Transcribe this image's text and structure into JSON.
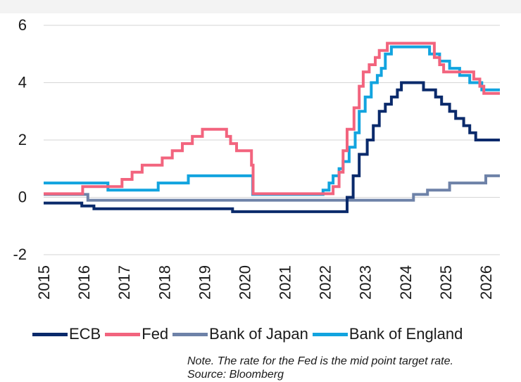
{
  "chart_data": {
    "type": "line",
    "title": "",
    "xlabel": "",
    "ylabel": "",
    "xlim": [
      2015.0,
      2026.35
    ],
    "ylim": [
      -2,
      6
    ],
    "y_ticks": [
      6,
      4,
      2,
      0,
      -2
    ],
    "y_tick_labels": [
      "6",
      "4",
      "2",
      "0",
      "-2"
    ],
    "x_ticks": [
      2015,
      2016,
      2017,
      2018,
      2019,
      2020,
      2021,
      2022,
      2023,
      2024,
      2025,
      2026
    ],
    "x_tick_labels": [
      "2015",
      "2016",
      "2017",
      "2018",
      "2019",
      "2020",
      "2021",
      "2022",
      "2023",
      "2024",
      "2025",
      "2026"
    ],
    "grid": "horizontal",
    "legend_position": "bottom",
    "series": [
      {
        "name": "ECB",
        "color": "#0a2a6b",
        "points": [
          [
            2015.0,
            -0.2
          ],
          [
            2015.95,
            -0.3
          ],
          [
            2016.25,
            -0.4
          ],
          [
            2019.7,
            -0.5
          ],
          [
            2022.55,
            0.0
          ],
          [
            2022.7,
            0.75
          ],
          [
            2022.85,
            1.5
          ],
          [
            2023.05,
            2.0
          ],
          [
            2023.2,
            2.5
          ],
          [
            2023.35,
            3.0
          ],
          [
            2023.5,
            3.25
          ],
          [
            2023.65,
            3.5
          ],
          [
            2023.8,
            3.75
          ],
          [
            2023.9,
            4.0
          ],
          [
            2024.45,
            3.75
          ],
          [
            2024.75,
            3.5
          ],
          [
            2024.9,
            3.25
          ],
          [
            2025.1,
            3.0
          ],
          [
            2025.25,
            2.75
          ],
          [
            2025.45,
            2.5
          ],
          [
            2025.6,
            2.25
          ],
          [
            2025.75,
            2.0
          ],
          [
            2026.35,
            2.0
          ]
        ]
      },
      {
        "name": "Fed",
        "color": "#f2647e",
        "points": [
          [
            2015.0,
            0.125
          ],
          [
            2015.97,
            0.375
          ],
          [
            2016.95,
            0.625
          ],
          [
            2017.2,
            0.875
          ],
          [
            2017.45,
            1.125
          ],
          [
            2017.95,
            1.375
          ],
          [
            2018.2,
            1.625
          ],
          [
            2018.45,
            1.875
          ],
          [
            2018.7,
            2.125
          ],
          [
            2018.95,
            2.375
          ],
          [
            2019.55,
            2.125
          ],
          [
            2019.65,
            1.875
          ],
          [
            2019.8,
            1.625
          ],
          [
            2020.17,
            1.125
          ],
          [
            2020.21,
            0.125
          ],
          [
            2022.2,
            0.375
          ],
          [
            2022.35,
            0.875
          ],
          [
            2022.45,
            1.625
          ],
          [
            2022.55,
            2.375
          ],
          [
            2022.72,
            3.125
          ],
          [
            2022.85,
            3.875
          ],
          [
            2022.95,
            4.375
          ],
          [
            2023.1,
            4.625
          ],
          [
            2023.25,
            4.875
          ],
          [
            2023.35,
            5.125
          ],
          [
            2023.55,
            5.375
          ],
          [
            2024.72,
            4.875
          ],
          [
            2024.85,
            4.625
          ],
          [
            2024.95,
            4.375
          ],
          [
            2025.7,
            4.125
          ],
          [
            2025.85,
            3.875
          ],
          [
            2025.95,
            3.625
          ],
          [
            2026.35,
            3.625
          ]
        ]
      },
      {
        "name": "Bank of Japan",
        "color": "#6e82a8",
        "points": [
          [
            2015.0,
            0.1
          ],
          [
            2016.1,
            -0.1
          ],
          [
            2024.2,
            0.1
          ],
          [
            2024.55,
            0.25
          ],
          [
            2025.1,
            0.5
          ],
          [
            2026.0,
            0.75
          ],
          [
            2026.35,
            0.75
          ]
        ]
      },
      {
        "name": "Bank of England",
        "color": "#12a4df",
        "points": [
          [
            2015.0,
            0.5
          ],
          [
            2016.6,
            0.25
          ],
          [
            2017.85,
            0.5
          ],
          [
            2018.6,
            0.75
          ],
          [
            2020.2,
            0.1
          ],
          [
            2021.95,
            0.25
          ],
          [
            2022.1,
            0.5
          ],
          [
            2022.2,
            0.75
          ],
          [
            2022.35,
            1.0
          ],
          [
            2022.45,
            1.25
          ],
          [
            2022.6,
            1.75
          ],
          [
            2022.75,
            2.25
          ],
          [
            2022.85,
            3.0
          ],
          [
            2023.0,
            3.5
          ],
          [
            2023.15,
            4.0
          ],
          [
            2023.3,
            4.25
          ],
          [
            2023.4,
            4.5
          ],
          [
            2023.5,
            5.0
          ],
          [
            2023.65,
            5.25
          ],
          [
            2024.6,
            5.0
          ],
          [
            2024.85,
            4.75
          ],
          [
            2025.1,
            4.5
          ],
          [
            2025.35,
            4.25
          ],
          [
            2025.6,
            4.0
          ],
          [
            2025.9,
            3.75
          ],
          [
            2026.35,
            3.75
          ]
        ]
      }
    ],
    "note": "Note. The rate for the Fed is the mid point target rate.",
    "source": "Source: Bloomberg"
  }
}
